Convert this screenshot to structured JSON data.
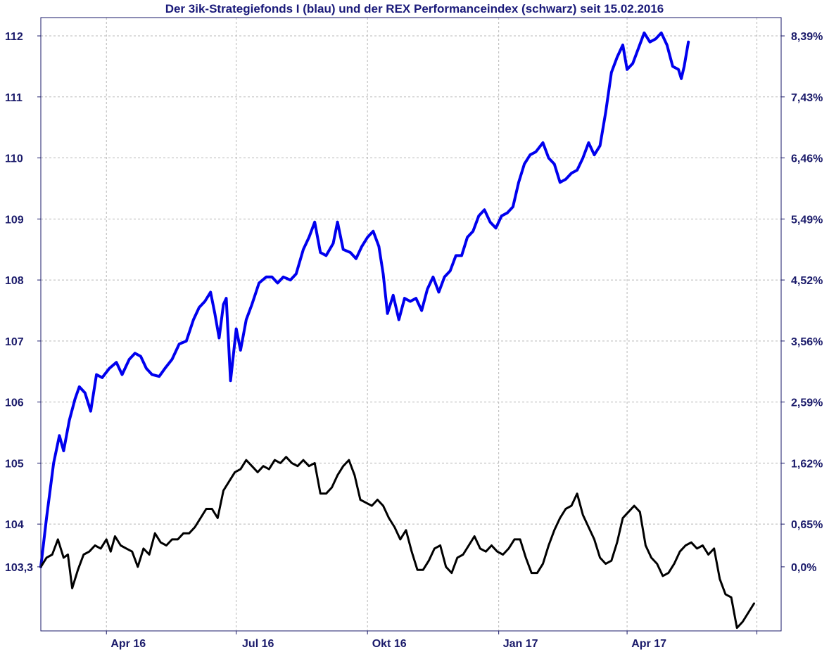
{
  "chart_data": {
    "type": "line",
    "title": "Der 3ik-Strategiefonds I (blau) und der REX Performanceindex (schwarz) seit 15.02.2016",
    "xlabel": "",
    "ylabel": "",
    "x_tick_labels": [
      "Apr 16",
      "Jul 16",
      "Okt 16",
      "Jan 17",
      "Apr 17"
    ],
    "x_tick_dates": [
      "2016-04-01",
      "2016-07-01",
      "2016-10-01",
      "2017-01-01",
      "2017-04-01"
    ],
    "x_range": [
      "2016-02-15",
      "2017-07-18"
    ],
    "y_left_ticks": [
      {
        "value": 103.3,
        "label": "103,3"
      },
      {
        "value": 104,
        "label": "104"
      },
      {
        "value": 105,
        "label": "105"
      },
      {
        "value": 106,
        "label": "106"
      },
      {
        "value": 107,
        "label": "107"
      },
      {
        "value": 108,
        "label": "108"
      },
      {
        "value": 109,
        "label": "109"
      },
      {
        "value": 110,
        "label": "110"
      },
      {
        "value": 111,
        "label": "111"
      },
      {
        "value": 112,
        "label": "112"
      }
    ],
    "y_right_ticks": [
      {
        "value": 103.3,
        "label": "0,0%"
      },
      {
        "value": 104,
        "label": "0,65%"
      },
      {
        "value": 105,
        "label": "1,62%"
      },
      {
        "value": 106,
        "label": "2,59%"
      },
      {
        "value": 107,
        "label": "3,56%"
      },
      {
        "value": 108,
        "label": "4,52%"
      },
      {
        "value": 109,
        "label": "5,49%"
      },
      {
        "value": 110,
        "label": "6,46%"
      },
      {
        "value": 111,
        "label": "7,43%"
      },
      {
        "value": 112,
        "label": "8,39%"
      }
    ],
    "ylim": [
      102.25,
      112.3
    ],
    "grid": true,
    "legend": "none",
    "series": [
      {
        "color": "#0000ee",
        "points": [
          [
            "2016-02-15",
            103.3
          ],
          [
            "2016-02-19",
            104.1
          ],
          [
            "2016-02-24",
            105.0
          ],
          [
            "2016-02-28",
            105.45
          ],
          [
            "2016-03-02",
            105.2
          ],
          [
            "2016-03-06",
            105.7
          ],
          [
            "2016-03-10",
            106.05
          ],
          [
            "2016-03-13",
            106.25
          ],
          [
            "2016-03-17",
            106.15
          ],
          [
            "2016-03-21",
            105.85
          ],
          [
            "2016-03-25",
            106.45
          ],
          [
            "2016-03-29",
            106.4
          ],
          [
            "2016-04-03",
            106.55
          ],
          [
            "2016-04-08",
            106.65
          ],
          [
            "2016-04-12",
            106.45
          ],
          [
            "2016-04-17",
            106.7
          ],
          [
            "2016-04-21",
            106.8
          ],
          [
            "2016-04-25",
            106.75
          ],
          [
            "2016-04-29",
            106.55
          ],
          [
            "2016-05-03",
            106.45
          ],
          [
            "2016-05-08",
            106.42
          ],
          [
            "2016-05-12",
            106.55
          ],
          [
            "2016-05-17",
            106.7
          ],
          [
            "2016-05-22",
            106.95
          ],
          [
            "2016-05-27",
            107.0
          ],
          [
            "2016-06-01",
            107.35
          ],
          [
            "2016-06-05",
            107.55
          ],
          [
            "2016-06-09",
            107.65
          ],
          [
            "2016-06-13",
            107.8
          ],
          [
            "2016-06-16",
            107.45
          ],
          [
            "2016-06-19",
            107.05
          ],
          [
            "2016-06-22",
            107.6
          ],
          [
            "2016-06-24",
            107.7
          ],
          [
            "2016-06-27",
            106.35
          ],
          [
            "2016-07-01",
            107.2
          ],
          [
            "2016-07-04",
            106.85
          ],
          [
            "2016-07-08",
            107.35
          ],
          [
            "2016-07-12",
            107.6
          ],
          [
            "2016-07-17",
            107.95
          ],
          [
            "2016-07-22",
            108.05
          ],
          [
            "2016-07-26",
            108.05
          ],
          [
            "2016-07-30",
            107.95
          ],
          [
            "2016-08-03",
            108.05
          ],
          [
            "2016-08-08",
            108.0
          ],
          [
            "2016-08-12",
            108.1
          ],
          [
            "2016-08-17",
            108.5
          ],
          [
            "2016-08-21",
            108.7
          ],
          [
            "2016-08-25",
            108.95
          ],
          [
            "2016-08-29",
            108.45
          ],
          [
            "2016-09-02",
            108.4
          ],
          [
            "2016-09-07",
            108.6
          ],
          [
            "2016-09-10",
            108.95
          ],
          [
            "2016-09-14",
            108.5
          ],
          [
            "2016-09-19",
            108.45
          ],
          [
            "2016-09-23",
            108.35
          ],
          [
            "2016-09-27",
            108.55
          ],
          [
            "2016-10-01",
            108.7
          ],
          [
            "2016-10-05",
            108.8
          ],
          [
            "2016-10-09",
            108.55
          ],
          [
            "2016-10-12",
            108.1
          ],
          [
            "2016-10-15",
            107.45
          ],
          [
            "2016-10-19",
            107.75
          ],
          [
            "2016-10-23",
            107.35
          ],
          [
            "2016-10-27",
            107.7
          ],
          [
            "2016-10-31",
            107.65
          ],
          [
            "2016-11-04",
            107.7
          ],
          [
            "2016-11-08",
            107.5
          ],
          [
            "2016-11-12",
            107.85
          ],
          [
            "2016-11-16",
            108.05
          ],
          [
            "2016-11-20",
            107.8
          ],
          [
            "2016-11-24",
            108.05
          ],
          [
            "2016-11-28",
            108.15
          ],
          [
            "2016-12-02",
            108.4
          ],
          [
            "2016-12-06",
            108.4
          ],
          [
            "2016-12-10",
            108.7
          ],
          [
            "2016-12-14",
            108.8
          ],
          [
            "2016-12-18",
            109.05
          ],
          [
            "2016-12-22",
            109.15
          ],
          [
            "2016-12-26",
            108.95
          ],
          [
            "2016-12-30",
            108.85
          ],
          [
            "2017-01-03",
            109.05
          ],
          [
            "2017-01-07",
            109.1
          ],
          [
            "2017-01-11",
            109.2
          ],
          [
            "2017-01-15",
            109.6
          ],
          [
            "2017-01-19",
            109.9
          ],
          [
            "2017-01-23",
            110.05
          ],
          [
            "2017-01-27",
            110.1
          ],
          [
            "2017-02-01",
            110.25
          ],
          [
            "2017-02-05",
            110.0
          ],
          [
            "2017-02-09",
            109.9
          ],
          [
            "2017-02-13",
            109.6
          ],
          [
            "2017-02-17",
            109.65
          ],
          [
            "2017-02-21",
            109.75
          ],
          [
            "2017-02-25",
            109.8
          ],
          [
            "2017-03-01",
            110.0
          ],
          [
            "2017-03-05",
            110.25
          ],
          [
            "2017-03-09",
            110.05
          ],
          [
            "2017-03-13",
            110.2
          ],
          [
            "2017-03-17",
            110.75
          ],
          [
            "2017-03-21",
            111.4
          ],
          [
            "2017-03-25",
            111.65
          ],
          [
            "2017-03-29",
            111.85
          ],
          [
            "2017-04-01",
            111.45
          ],
          [
            "2017-04-05",
            111.55
          ],
          [
            "2017-04-09",
            111.8
          ],
          [
            "2017-04-13",
            112.05
          ],
          [
            "2017-04-17",
            111.9
          ],
          [
            "2017-04-21",
            111.95
          ],
          [
            "2017-04-25",
            112.05
          ],
          [
            "2017-04-29",
            111.85
          ],
          [
            "2017-05-03",
            111.5
          ],
          [
            "2017-05-07",
            111.45
          ],
          [
            "2017-05-09",
            111.3
          ],
          [
            "2017-05-11",
            111.5
          ],
          [
            "2017-05-14",
            111.9
          ]
        ]
      },
      {
        "color": "#000000",
        "points": [
          [
            "2016-02-15",
            103.3
          ],
          [
            "2016-02-19",
            103.45
          ],
          [
            "2016-02-23",
            103.5
          ],
          [
            "2016-02-27",
            103.75
          ],
          [
            "2016-03-02",
            103.45
          ],
          [
            "2016-03-05",
            103.5
          ],
          [
            "2016-03-08",
            102.95
          ],
          [
            "2016-03-12",
            103.25
          ],
          [
            "2016-03-16",
            103.5
          ],
          [
            "2016-03-20",
            103.55
          ],
          [
            "2016-03-24",
            103.65
          ],
          [
            "2016-03-28",
            103.6
          ],
          [
            "2016-04-01",
            103.75
          ],
          [
            "2016-04-04",
            103.55
          ],
          [
            "2016-04-07",
            103.8
          ],
          [
            "2016-04-11",
            103.65
          ],
          [
            "2016-04-15",
            103.6
          ],
          [
            "2016-04-19",
            103.55
          ],
          [
            "2016-04-23",
            103.3
          ],
          [
            "2016-04-27",
            103.6
          ],
          [
            "2016-05-01",
            103.5
          ],
          [
            "2016-05-05",
            103.85
          ],
          [
            "2016-05-09",
            103.7
          ],
          [
            "2016-05-13",
            103.65
          ],
          [
            "2016-05-17",
            103.75
          ],
          [
            "2016-05-21",
            103.75
          ],
          [
            "2016-05-25",
            103.85
          ],
          [
            "2016-05-29",
            103.85
          ],
          [
            "2016-06-02",
            103.95
          ],
          [
            "2016-06-06",
            104.1
          ],
          [
            "2016-06-10",
            104.25
          ],
          [
            "2016-06-14",
            104.25
          ],
          [
            "2016-06-18",
            104.1
          ],
          [
            "2016-06-22",
            104.55
          ],
          [
            "2016-06-26",
            104.7
          ],
          [
            "2016-06-30",
            104.85
          ],
          [
            "2016-07-04",
            104.9
          ],
          [
            "2016-07-08",
            105.05
          ],
          [
            "2016-07-12",
            104.95
          ],
          [
            "2016-07-16",
            104.85
          ],
          [
            "2016-07-20",
            104.95
          ],
          [
            "2016-07-24",
            104.9
          ],
          [
            "2016-07-28",
            105.05
          ],
          [
            "2016-08-01",
            105.0
          ],
          [
            "2016-08-05",
            105.1
          ],
          [
            "2016-08-09",
            105.0
          ],
          [
            "2016-08-13",
            104.95
          ],
          [
            "2016-08-17",
            105.05
          ],
          [
            "2016-08-21",
            104.95
          ],
          [
            "2016-08-25",
            105.0
          ],
          [
            "2016-08-29",
            104.5
          ],
          [
            "2016-09-02",
            104.5
          ],
          [
            "2016-09-06",
            104.6
          ],
          [
            "2016-09-10",
            104.8
          ],
          [
            "2016-09-14",
            104.95
          ],
          [
            "2016-09-18",
            105.05
          ],
          [
            "2016-09-22",
            104.8
          ],
          [
            "2016-09-26",
            104.4
          ],
          [
            "2016-09-30",
            104.35
          ],
          [
            "2016-10-04",
            104.3
          ],
          [
            "2016-10-08",
            104.4
          ],
          [
            "2016-10-12",
            104.3
          ],
          [
            "2016-10-16",
            104.1
          ],
          [
            "2016-10-20",
            103.95
          ],
          [
            "2016-10-24",
            103.75
          ],
          [
            "2016-10-28",
            103.9
          ],
          [
            "2016-11-01",
            103.55
          ],
          [
            "2016-11-05",
            103.25
          ],
          [
            "2016-11-09",
            103.25
          ],
          [
            "2016-11-13",
            103.4
          ],
          [
            "2016-11-17",
            103.6
          ],
          [
            "2016-11-21",
            103.65
          ],
          [
            "2016-11-25",
            103.3
          ],
          [
            "2016-11-29",
            103.2
          ],
          [
            "2016-12-03",
            103.45
          ],
          [
            "2016-12-07",
            103.5
          ],
          [
            "2016-12-11",
            103.65
          ],
          [
            "2016-12-15",
            103.8
          ],
          [
            "2016-12-19",
            103.6
          ],
          [
            "2016-12-23",
            103.55
          ],
          [
            "2016-12-27",
            103.65
          ],
          [
            "2016-12-31",
            103.55
          ],
          [
            "2017-01-04",
            103.5
          ],
          [
            "2017-01-08",
            103.6
          ],
          [
            "2017-01-12",
            103.75
          ],
          [
            "2017-01-16",
            103.75
          ],
          [
            "2017-01-20",
            103.45
          ],
          [
            "2017-01-24",
            103.2
          ],
          [
            "2017-01-28",
            103.2
          ],
          [
            "2017-02-01",
            103.35
          ],
          [
            "2017-02-05",
            103.65
          ],
          [
            "2017-02-09",
            103.9
          ],
          [
            "2017-02-13",
            104.1
          ],
          [
            "2017-02-17",
            104.25
          ],
          [
            "2017-02-21",
            104.3
          ],
          [
            "2017-02-25",
            104.5
          ],
          [
            "2017-03-01",
            104.15
          ],
          [
            "2017-03-05",
            103.95
          ],
          [
            "2017-03-09",
            103.75
          ],
          [
            "2017-03-13",
            103.45
          ],
          [
            "2017-03-17",
            103.35
          ],
          [
            "2017-03-21",
            103.4
          ],
          [
            "2017-03-25",
            103.7
          ],
          [
            "2017-03-29",
            104.1
          ],
          [
            "2017-04-02",
            104.2
          ],
          [
            "2017-04-06",
            104.3
          ],
          [
            "2017-04-10",
            104.2
          ],
          [
            "2017-04-14",
            103.65
          ],
          [
            "2017-04-18",
            103.45
          ],
          [
            "2017-04-22",
            103.35
          ],
          [
            "2017-04-26",
            103.15
          ],
          [
            "2017-04-30",
            103.2
          ],
          [
            "2017-05-04",
            103.35
          ],
          [
            "2017-05-08",
            103.55
          ],
          [
            "2017-05-12",
            103.65
          ],
          [
            "2017-05-16",
            103.7
          ],
          [
            "2017-05-20",
            103.6
          ],
          [
            "2017-05-24",
            103.65
          ],
          [
            "2017-05-28",
            103.5
          ],
          [
            "2017-06-01",
            103.6
          ],
          [
            "2017-06-05",
            103.1
          ],
          [
            "2017-06-09",
            102.85
          ],
          [
            "2017-06-13",
            102.8
          ],
          [
            "2017-06-17",
            102.3
          ],
          [
            "2017-06-21",
            102.4
          ],
          [
            "2017-06-25",
            102.55
          ],
          [
            "2017-06-29",
            102.7
          ]
        ]
      }
    ]
  }
}
